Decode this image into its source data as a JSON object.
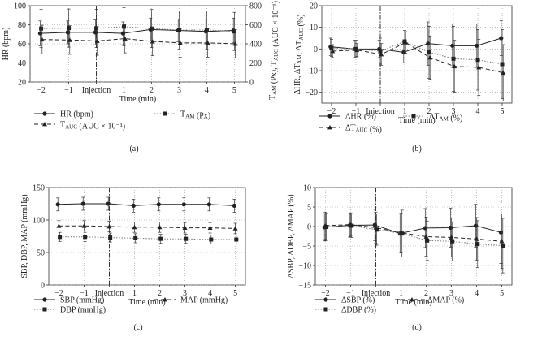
{
  "chart_data": [
    {
      "panel": "(a)",
      "type": "line",
      "x_tick_labels": [
        "−2",
        "−1",
        "Injection",
        "1",
        "2",
        "3",
        "4",
        "5"
      ],
      "x": [
        -2,
        -1,
        0,
        1,
        2,
        3,
        4,
        5
      ],
      "xlabel": "Time (min)",
      "ylabel": "HR (bpm)",
      "ylim": [
        20,
        100
      ],
      "yticks": [
        20,
        40,
        60,
        80,
        100
      ],
      "ylabel_right": "T_AM (Px), T_AUC (AUC × 10⁻¹)",
      "ylim_right": [
        0,
        800
      ],
      "yticks_right": [
        0,
        200,
        400,
        600,
        800
      ],
      "grid": "dotted",
      "injection_marker": 0,
      "series": [
        {
          "name": "HR (bpm)",
          "axis": "left",
          "marker": "circle",
          "style": "solid",
          "values": [
            71,
            72,
            72,
            71,
            75,
            74,
            73,
            74
          ],
          "errors": [
            13,
            12,
            13,
            12,
            12,
            12,
            13,
            13
          ]
        },
        {
          "name": "T_AM (Px)",
          "axis": "right",
          "marker": "square",
          "style": "dotted",
          "values": [
            560,
            565,
            563,
            580,
            560,
            545,
            545,
            530
          ],
          "errors": [
            200,
            200,
            200,
            200,
            200,
            200,
            200,
            200
          ]
        },
        {
          "name": "T_AUC (AUC × 10⁻¹)",
          "axis": "right",
          "marker": "triangle",
          "style": "dashed",
          "values": [
            445,
            440,
            430,
            455,
            425,
            410,
            410,
            400
          ],
          "errors": [
            150,
            150,
            150,
            150,
            150,
            150,
            150,
            150
          ]
        }
      ]
    },
    {
      "panel": "(b)",
      "type": "line",
      "x_tick_labels": [
        "−2",
        "−1",
        "Injection",
        "1",
        "2",
        "3",
        "4",
        "5"
      ],
      "x": [
        -2,
        -1,
        0,
        1,
        2,
        3,
        4,
        5
      ],
      "xlabel": "Time (min)",
      "ylabel": "ΔHR, ΔT_AM, ΔT_AUC (%)",
      "ylim": [
        -25,
        20
      ],
      "yticks": [
        -20,
        -10,
        0,
        10,
        20
      ],
      "grid": "dotted",
      "injection_marker": 0,
      "series": [
        {
          "name": "ΔHR (%)",
          "marker": "circle",
          "style": "solid",
          "values": [
            1,
            0,
            0,
            -1.5,
            2.5,
            1.5,
            1.5,
            5
          ],
          "errors": [
            4,
            4,
            4,
            5,
            10,
            10,
            10,
            8
          ]
        },
        {
          "name": "ΔT_AM (%)",
          "marker": "square",
          "style": "dotted",
          "values": [
            0.5,
            0,
            -1,
            3.5,
            -1.5,
            -4.5,
            -5,
            -7
          ],
          "errors": [
            4,
            4,
            6,
            5,
            12,
            15,
            14,
            16
          ]
        },
        {
          "name": "ΔT_AUC (%)",
          "marker": "triangle",
          "style": "dashed",
          "values": [
            -1,
            -0.5,
            -2.5,
            3,
            -4,
            -8,
            -8.5,
            -11
          ],
          "errors": [
            3,
            3,
            5,
            5,
            10,
            12,
            13,
            13
          ]
        }
      ]
    },
    {
      "panel": "(c)",
      "type": "line",
      "x_tick_labels": [
        "−2",
        "−1",
        "Injection",
        "1",
        "2",
        "3",
        "4",
        "5"
      ],
      "x": [
        -2,
        -1,
        0,
        1,
        2,
        3,
        4,
        5
      ],
      "xlabel": "Time (min)",
      "ylabel": "SBP, DBP, MAP (mmHg)",
      "ylim": [
        0,
        150
      ],
      "yticks": [
        0,
        50,
        100,
        150
      ],
      "grid": "dotted",
      "injection_marker": 0,
      "series": [
        {
          "name": "SBP (mmHg)",
          "marker": "circle",
          "style": "solid",
          "values": [
            124,
            125,
            125,
            122,
            124,
            124,
            124,
            122
          ],
          "errors": [
            10,
            10,
            10,
            10,
            10,
            10,
            10,
            10
          ]
        },
        {
          "name": "MAP (mmHg)",
          "marker": "triangle",
          "style": "dashed",
          "values": [
            91,
            91,
            90,
            89,
            89,
            88,
            88,
            87
          ],
          "errors": [
            8,
            8,
            8,
            8,
            8,
            8,
            8,
            8
          ]
        },
        {
          "name": "DBP (mmHg)",
          "marker": "square",
          "style": "dotted",
          "values": [
            74,
            74,
            73,
            72,
            71,
            71,
            70,
            70
          ],
          "errors": [
            7,
            7,
            7,
            7,
            7,
            7,
            7,
            7
          ]
        }
      ]
    },
    {
      "panel": "(d)",
      "type": "line",
      "x_tick_labels": [
        "−2",
        "−1",
        "Injection",
        "1",
        "2",
        "3",
        "4",
        "5"
      ],
      "x": [
        -2,
        -1,
        0,
        1,
        2,
        3,
        4,
        5
      ],
      "xlabel": "Time (min)",
      "ylabel": "ΔSBP, ΔDBP, ΔMAP (%)",
      "ylim": [
        -15,
        10
      ],
      "yticks": [
        -15,
        -10,
        -5,
        0,
        5,
        10
      ],
      "grid": "dotted",
      "injection_marker": 0,
      "series": [
        {
          "name": "ΔSBP (%)",
          "marker": "circle",
          "style": "solid",
          "values": [
            -0.2,
            0.3,
            0.4,
            -1.8,
            -0.4,
            -0.3,
            0.2,
            -1.5
          ],
          "errors": [
            3.5,
            3,
            4,
            5,
            5,
            5,
            5.5,
            8
          ]
        },
        {
          "name": "ΔMAP (%)",
          "marker": "triangle",
          "style": "dashed",
          "values": [
            0.2,
            0.5,
            -0.3,
            -1.6,
            -2.6,
            -2.8,
            -3.2,
            -3.8
          ],
          "errors": [
            3.5,
            3,
            4,
            5,
            5,
            5,
            5.5,
            7
          ]
        },
        {
          "name": "ΔDBP (%)",
          "marker": "square",
          "style": "dotted",
          "values": [
            -0.1,
            0.2,
            -0.8,
            -1.8,
            -3.6,
            -3.8,
            -4.5,
            -4.9
          ],
          "errors": [
            3.5,
            3,
            4,
            6,
            5,
            5,
            6,
            7
          ]
        }
      ]
    }
  ]
}
